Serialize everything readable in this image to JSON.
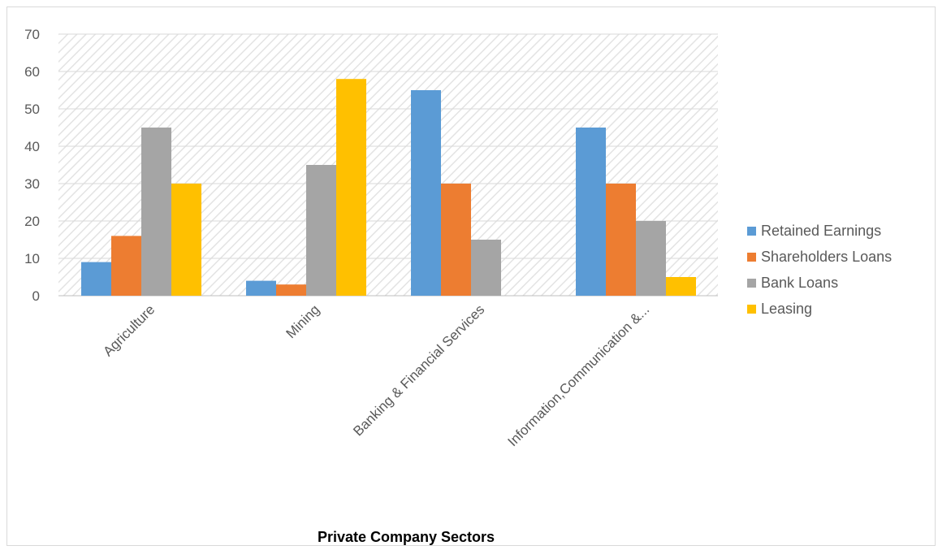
{
  "chart_data": {
    "type": "bar",
    "title": "",
    "xlabel": "Private Company Sectors",
    "ylabel": "",
    "ylim": [
      0,
      70
    ],
    "yticks": [
      0,
      10,
      20,
      30,
      40,
      50,
      60,
      70
    ],
    "grid": true,
    "legend_position": "right",
    "categories": [
      "Agriculture",
      "Mining",
      "Banking & Financial Services",
      "Information,Communication &..."
    ],
    "series": [
      {
        "name": "Retained Earnings",
        "color": "#5B9BD5",
        "values": [
          9,
          4,
          55,
          45
        ]
      },
      {
        "name": "Shareholders Loans",
        "color": "#ED7D31",
        "values": [
          16,
          3,
          30,
          30
        ]
      },
      {
        "name": "Bank Loans",
        "color": "#A5A5A5",
        "values": [
          45,
          35,
          15,
          20
        ]
      },
      {
        "name": "Leasing",
        "color": "#FFC000",
        "values": [
          30,
          58,
          0,
          5
        ]
      }
    ]
  }
}
